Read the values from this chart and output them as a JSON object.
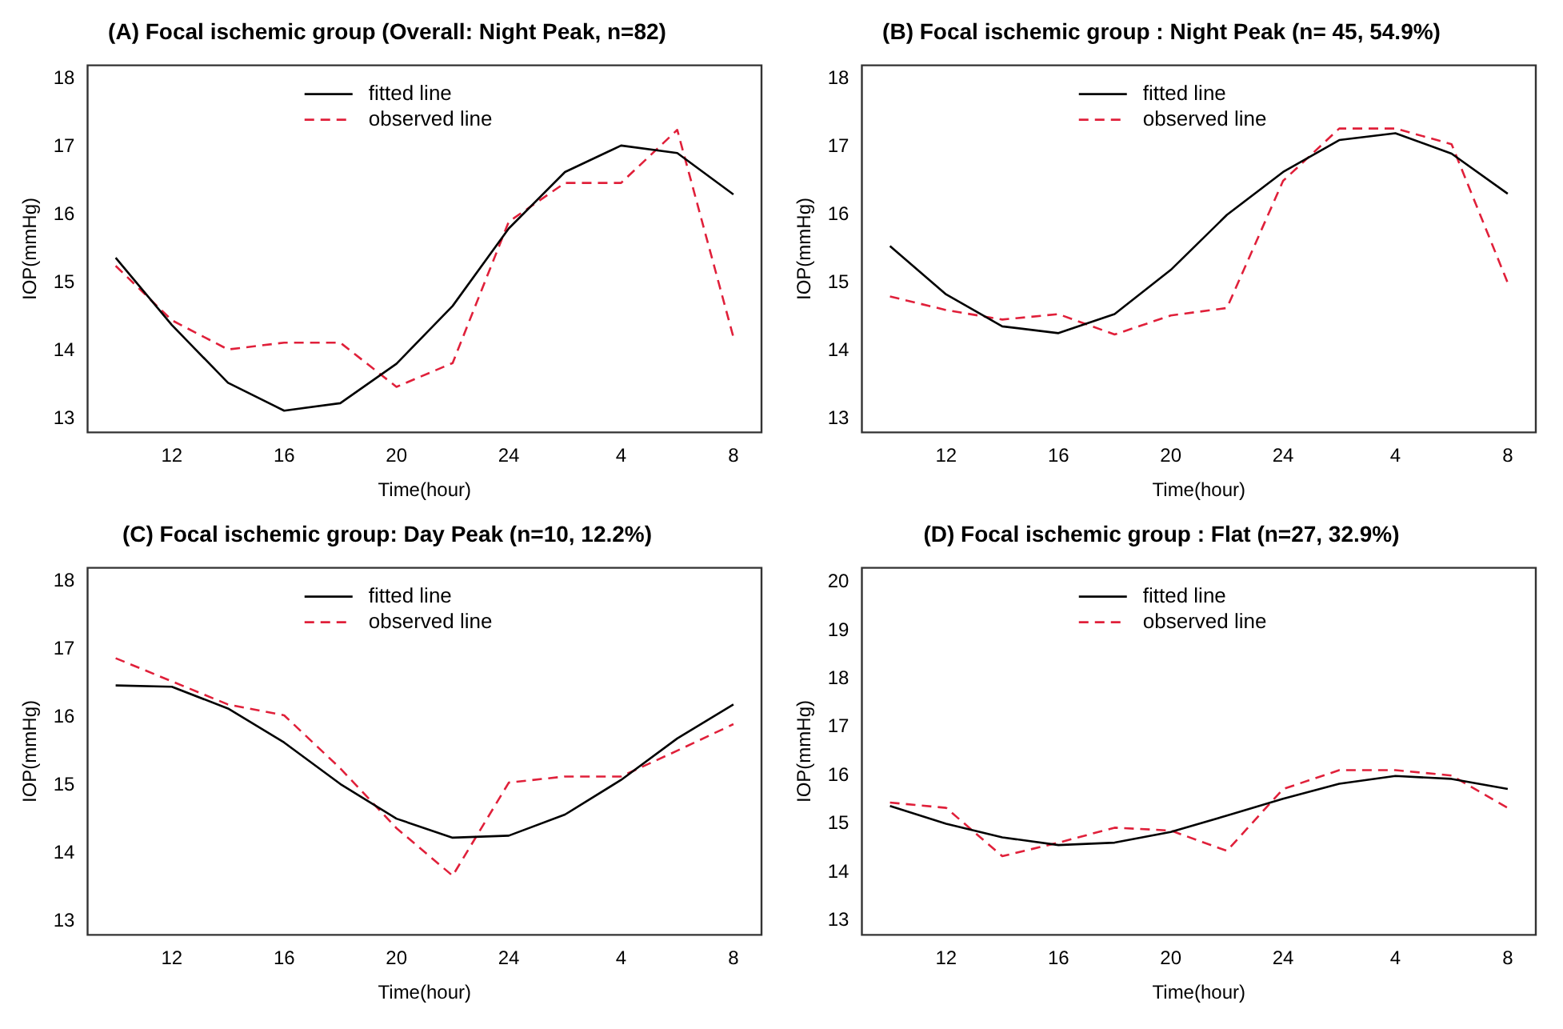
{
  "chart_data": [
    {
      "type": "line",
      "title": "(A) Focal ischemic group (Overall: Night Peak, n=82)",
      "xlabel": "Time(hour)",
      "ylabel": "IOP(mmHg)",
      "categories": [
        null,
        "12",
        null,
        "16",
        null,
        "20",
        null,
        "24",
        null,
        "4",
        null,
        "8"
      ],
      "ylim": [
        12.8,
        18.2
      ],
      "yticks": [
        13,
        14,
        15,
        16,
        17,
        18
      ],
      "grid": false,
      "legend": "top",
      "marker": "none",
      "series": [
        {
          "name": "fitted line",
          "color": "#000000",
          "line_style": "solid",
          "values": [
            15.37,
            14.38,
            13.53,
            13.12,
            13.23,
            13.81,
            14.66,
            15.8,
            16.63,
            17.02,
            16.91,
            16.3
          ]
        },
        {
          "name": "observed line",
          "color": "#e0203a",
          "line_style": "dashed",
          "values": [
            15.25,
            14.45,
            14.02,
            14.12,
            14.12,
            13.47,
            13.82,
            15.9,
            16.47,
            16.47,
            17.25,
            14.2
          ]
        }
      ]
    },
    {
      "type": "line",
      "title": "(B) Focal ischemic group : Night Peak (n= 45, 54.9%)",
      "xlabel": "Time(hour)",
      "ylabel": "IOP(mmHg)",
      "categories": [
        null,
        "12",
        null,
        "16",
        null,
        "20",
        null,
        "24",
        null,
        "4",
        null,
        "8"
      ],
      "ylim": [
        12.8,
        18.2
      ],
      "yticks": [
        13,
        14,
        15,
        16,
        17,
        18
      ],
      "grid": false,
      "legend": "top",
      "marker": "none",
      "series": [
        {
          "name": "fitted line",
          "color": "#000000",
          "line_style": "solid",
          "values": [
            15.54,
            14.83,
            14.36,
            14.26,
            14.54,
            15.19,
            16.0,
            16.63,
            17.1,
            17.2,
            16.9,
            16.31
          ]
        },
        {
          "name": "observed line",
          "color": "#e0203a",
          "line_style": "dashed",
          "values": [
            14.8,
            14.6,
            14.46,
            14.54,
            14.24,
            14.52,
            14.63,
            16.5,
            17.27,
            17.27,
            17.04,
            15.0
          ]
        }
      ]
    },
    {
      "type": "line",
      "title": "(C) Focal ischemic group: Day Peak (n=10, 12.2%)",
      "xlabel": "Time(hour)",
      "ylabel": "IOP(mmHg)",
      "categories": [
        null,
        "12",
        null,
        "16",
        null,
        "20",
        null,
        "24",
        null,
        "4",
        null,
        "8"
      ],
      "ylim": [
        12.8,
        18.2
      ],
      "yticks": [
        13,
        14,
        15,
        16,
        17,
        18
      ],
      "grid": false,
      "legend": "top",
      "marker": "none",
      "series": [
        {
          "name": "fitted line",
          "color": "#000000",
          "line_style": "solid",
          "values": [
            16.47,
            16.45,
            16.13,
            15.63,
            15.02,
            14.51,
            14.23,
            14.26,
            14.57,
            15.08,
            15.69,
            16.19
          ]
        },
        {
          "name": "observed line",
          "color": "#e0203a",
          "line_style": "dashed",
          "values": [
            16.87,
            16.53,
            16.19,
            16.03,
            15.25,
            14.37,
            13.67,
            15.04,
            15.13,
            15.13,
            15.51,
            15.9
          ]
        }
      ]
    },
    {
      "type": "line",
      "title": "(D) Focal ischemic group : Flat (n=27, 32.9%)",
      "xlabel": "Time(hour)",
      "ylabel": "IOP(mmHg)",
      "categories": [
        null,
        "12",
        null,
        "16",
        null,
        "20",
        null,
        "24",
        null,
        "4",
        null,
        "8"
      ],
      "ylim": [
        12.7,
        20.3
      ],
      "yticks": [
        13,
        14,
        15,
        16,
        17,
        18,
        19,
        20
      ],
      "grid": false,
      "legend": "top",
      "marker": "none",
      "series": [
        {
          "name": "fitted line",
          "color": "#000000",
          "line_style": "solid",
          "values": [
            15.37,
            15.0,
            14.72,
            14.56,
            14.61,
            14.83,
            15.17,
            15.52,
            15.83,
            15.99,
            15.93,
            15.72
          ]
        },
        {
          "name": "observed line",
          "color": "#e0203a",
          "line_style": "dashed",
          "values": [
            15.44,
            15.33,
            14.33,
            14.61,
            14.92,
            14.86,
            14.44,
            15.72,
            16.11,
            16.11,
            16.0,
            15.33
          ]
        }
      ]
    }
  ]
}
